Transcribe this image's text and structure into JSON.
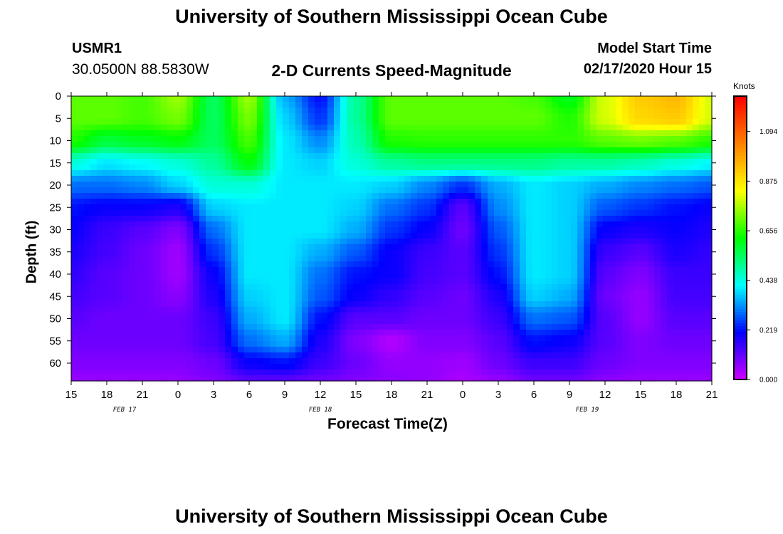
{
  "page_title": "University of Southern Mississippi Ocean Cube",
  "footer_title": "University of Southern Mississippi Ocean Cube",
  "station": {
    "id": "USMR1",
    "coords": "30.0500N 88.5830W"
  },
  "model": {
    "label": "Model Start Time",
    "start": "02/17/2020 Hour 15"
  },
  "chart_data": {
    "type": "heatmap",
    "title": "2-D Currents Speed-Magnitude",
    "xlabel": "Forecast Time(Z)",
    "ylabel": "Depth (ft)",
    "x_tick_labels": [
      "15",
      "18",
      "21",
      "0",
      "3",
      "6",
      "9",
      "12",
      "15",
      "18",
      "21",
      "0",
      "3",
      "6",
      "9",
      "12",
      "15",
      "18",
      "21"
    ],
    "x_hours_from_start": [
      0,
      3,
      6,
      9,
      12,
      15,
      18,
      21,
      24,
      27,
      30,
      33,
      36,
      39,
      42,
      45,
      48,
      51,
      54
    ],
    "day_labels": [
      {
        "label": "FEB 17",
        "hours_from_start": 4.5
      },
      {
        "label": "FEB 18",
        "hours_from_start": 21
      },
      {
        "label": "FEB 19",
        "hours_from_start": 43.5
      }
    ],
    "y_ticks": [
      0,
      5,
      10,
      15,
      20,
      25,
      30,
      35,
      40,
      45,
      50,
      55,
      60
    ],
    "ylim": [
      0,
      64
    ],
    "xlim_hours": [
      0,
      54
    ],
    "colorbar": {
      "label": "Knots",
      "ticks": [
        0.0,
        0.219,
        0.438,
        0.656,
        0.875,
        1.094
      ],
      "tick_labels": [
        "0.000",
        "0.219",
        "0.438",
        "0.656",
        "0.875",
        "1.094"
      ],
      "range": [
        0,
        1.25
      ],
      "colors": [
        "#d000ff",
        "#0000ff",
        "#00ffff",
        "#00ff00",
        "#ffff00",
        "#ff8000",
        "#ff0000"
      ]
    },
    "grid_hours": [
      0,
      3,
      6,
      9,
      12,
      15,
      18,
      21,
      24,
      27,
      30,
      33,
      36,
      39,
      42,
      45,
      48,
      51,
      54
    ],
    "grid_depths": [
      0,
      5,
      10,
      15,
      20,
      25,
      30,
      35,
      40,
      45,
      50,
      55,
      60,
      64
    ],
    "values": [
      [
        0.7,
        0.7,
        0.68,
        0.75,
        0.55,
        0.75,
        0.35,
        0.22,
        0.5,
        0.7,
        0.7,
        0.7,
        0.7,
        0.68,
        0.6,
        0.8,
        0.92,
        0.95,
        0.8
      ],
      [
        0.7,
        0.7,
        0.68,
        0.72,
        0.55,
        0.72,
        0.38,
        0.25,
        0.5,
        0.7,
        0.7,
        0.7,
        0.7,
        0.7,
        0.65,
        0.8,
        0.9,
        0.92,
        0.8
      ],
      [
        0.65,
        0.58,
        0.6,
        0.62,
        0.55,
        0.68,
        0.4,
        0.32,
        0.48,
        0.65,
        0.66,
        0.66,
        0.66,
        0.66,
        0.66,
        0.7,
        0.72,
        0.7,
        0.66
      ],
      [
        0.45,
        0.4,
        0.42,
        0.45,
        0.5,
        0.62,
        0.4,
        0.38,
        0.45,
        0.5,
        0.52,
        0.52,
        0.52,
        0.52,
        0.5,
        0.5,
        0.48,
        0.45,
        0.42
      ],
      [
        0.3,
        0.3,
        0.32,
        0.38,
        0.45,
        0.45,
        0.4,
        0.4,
        0.4,
        0.38,
        0.32,
        0.25,
        0.35,
        0.4,
        0.38,
        0.35,
        0.32,
        0.3,
        0.28
      ],
      [
        0.22,
        0.2,
        0.2,
        0.18,
        0.38,
        0.4,
        0.4,
        0.4,
        0.38,
        0.3,
        0.25,
        0.12,
        0.32,
        0.4,
        0.38,
        0.28,
        0.25,
        0.22,
        0.2
      ],
      [
        0.2,
        0.15,
        0.12,
        0.08,
        0.3,
        0.4,
        0.4,
        0.4,
        0.35,
        0.25,
        0.2,
        0.1,
        0.28,
        0.4,
        0.38,
        0.2,
        0.18,
        0.2,
        0.18
      ],
      [
        0.18,
        0.14,
        0.1,
        0.05,
        0.25,
        0.4,
        0.4,
        0.35,
        0.28,
        0.2,
        0.15,
        0.12,
        0.25,
        0.4,
        0.38,
        0.15,
        0.12,
        0.18,
        0.16
      ],
      [
        0.16,
        0.12,
        0.1,
        0.05,
        0.2,
        0.4,
        0.4,
        0.3,
        0.22,
        0.2,
        0.14,
        0.12,
        0.22,
        0.4,
        0.38,
        0.12,
        0.08,
        0.15,
        0.15
      ],
      [
        0.14,
        0.12,
        0.1,
        0.07,
        0.18,
        0.38,
        0.4,
        0.28,
        0.2,
        0.16,
        0.12,
        0.1,
        0.18,
        0.38,
        0.35,
        0.1,
        0.06,
        0.14,
        0.14
      ],
      [
        0.12,
        0.1,
        0.1,
        0.1,
        0.15,
        0.35,
        0.4,
        0.22,
        0.12,
        0.12,
        0.1,
        0.1,
        0.15,
        0.3,
        0.28,
        0.12,
        0.06,
        0.12,
        0.12
      ],
      [
        0.1,
        0.1,
        0.1,
        0.1,
        0.14,
        0.3,
        0.35,
        0.18,
        0.08,
        0.03,
        0.08,
        0.08,
        0.12,
        0.22,
        0.2,
        0.12,
        0.08,
        0.1,
        0.1
      ],
      [
        0.08,
        0.08,
        0.08,
        0.08,
        0.1,
        0.2,
        0.22,
        0.15,
        0.1,
        0.06,
        0.06,
        0.05,
        0.1,
        0.15,
        0.15,
        0.1,
        0.08,
        0.08,
        0.08
      ],
      [
        0.06,
        0.06,
        0.06,
        0.06,
        0.08,
        0.12,
        0.12,
        0.1,
        0.08,
        0.07,
        0.06,
        0.04,
        0.06,
        0.1,
        0.1,
        0.07,
        0.06,
        0.06,
        0.06
      ]
    ]
  }
}
